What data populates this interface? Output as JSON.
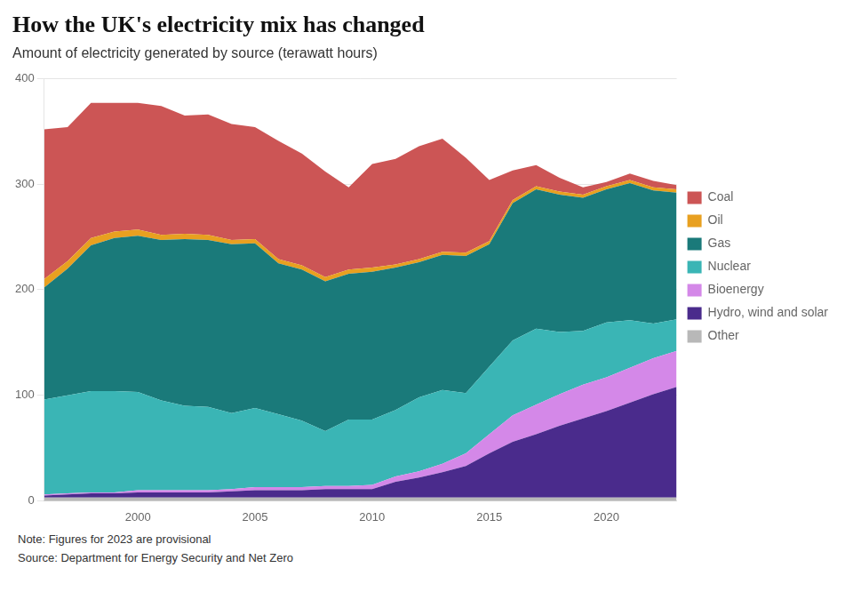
{
  "chart_data": {
    "type": "area",
    "stacked": true,
    "title": "How the UK's electricity mix has changed",
    "subtitle": "Amount of electricity generated by source (terawatt hours)",
    "annotations": [
      "Note: Figures for 2023 are provisional",
      "Source: Department for Energy Security and Net Zero"
    ],
    "x": [
      1996,
      1997,
      1998,
      1999,
      2000,
      2001,
      2002,
      2003,
      2004,
      2005,
      2006,
      2007,
      2008,
      2009,
      2010,
      2011,
      2012,
      2013,
      2014,
      2015,
      2016,
      2017,
      2018,
      2019,
      2020,
      2021,
      2022,
      2023
    ],
    "series": [
      {
        "name": "Other",
        "color": "#b8b8b8",
        "values": [
          3,
          3,
          3,
          3,
          3,
          3,
          3,
          3,
          3,
          3,
          3,
          3,
          3,
          3,
          3,
          3,
          3,
          3,
          3,
          3,
          3,
          3,
          3,
          3,
          3,
          3,
          3,
          3
        ]
      },
      {
        "name": "Hydro, wind and solar",
        "color": "#4a2b8c",
        "values": [
          2,
          3,
          4,
          4,
          5,
          5,
          5,
          5,
          6,
          7,
          7,
          7,
          8,
          8,
          8,
          15,
          19,
          24,
          30,
          42,
          53,
          60,
          68,
          75,
          82,
          90,
          98,
          105
        ]
      },
      {
        "name": "Bioenergy",
        "color": "#d488e8",
        "values": [
          1,
          1,
          1,
          1,
          2,
          2,
          2,
          2,
          2,
          3,
          3,
          3,
          3,
          3,
          4,
          5,
          6,
          8,
          12,
          18,
          25,
          28,
          30,
          32,
          32,
          33,
          34,
          34
        ]
      },
      {
        "name": "Nuclear",
        "color": "#3ab5b5",
        "values": [
          90,
          93,
          96,
          96,
          93,
          85,
          80,
          79,
          72,
          75,
          69,
          63,
          52,
          63,
          62,
          63,
          70,
          70,
          57,
          64,
          71,
          72,
          59,
          51,
          52,
          45,
          33,
          30
        ]
      },
      {
        "name": "Gas",
        "color": "#1a7a7a",
        "values": [
          106,
          120,
          138,
          145,
          148,
          152,
          158,
          158,
          160,
          156,
          143,
          143,
          142,
          138,
          140,
          135,
          128,
          128,
          130,
          116,
          130,
          132,
          130,
          126,
          126,
          130,
          126,
          120
        ]
      },
      {
        "name": "Oil",
        "color": "#e8a020",
        "values": [
          8,
          7,
          7,
          6,
          6,
          5,
          5,
          5,
          4,
          4,
          4,
          4,
          4,
          4,
          4,
          3,
          3,
          3,
          3,
          3,
          3,
          3,
          3,
          3,
          3,
          3,
          3,
          3
        ]
      },
      {
        "name": "Coal",
        "color": "#cc5555",
        "values": [
          142,
          127,
          128,
          122,
          120,
          122,
          112,
          114,
          110,
          106,
          112,
          106,
          100,
          78,
          98,
          100,
          107,
          107,
          90,
          58,
          28,
          20,
          13,
          7,
          4,
          6,
          6,
          4
        ]
      }
    ],
    "xlim": [
      1996,
      2023
    ],
    "xticks": [
      2000,
      2005,
      2010,
      2015,
      2020
    ],
    "ylim": [
      0,
      400
    ],
    "yticks": [
      0,
      100,
      200,
      300,
      400
    ],
    "grid": true,
    "legend": "right"
  }
}
